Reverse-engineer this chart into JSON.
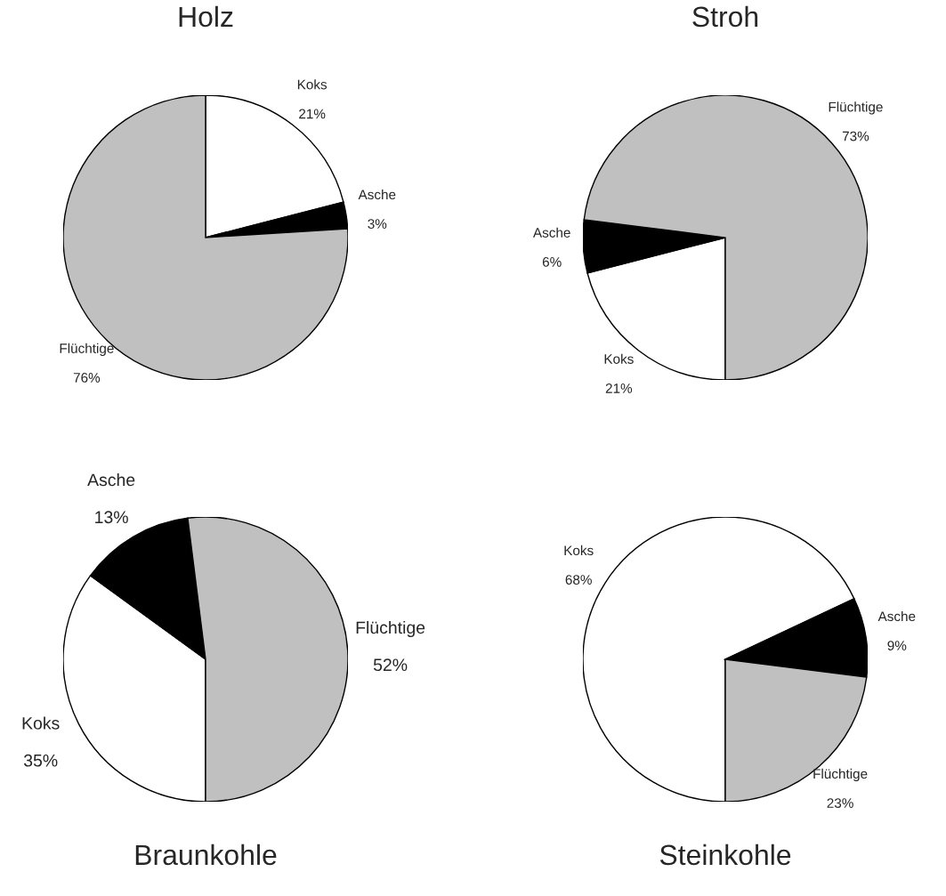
{
  "chart_data": [
    {
      "type": "pie",
      "title": "Holz",
      "categories": [
        "Koks",
        "Asche",
        "Flüchtige"
      ],
      "values": [
        21,
        3,
        76
      ],
      "value_labels": [
        "21%",
        "3%",
        "76%"
      ],
      "colors": [
        "#ffffff",
        "#000000",
        "#c0c0c0"
      ]
    },
    {
      "type": "pie",
      "title": "Stroh",
      "categories": [
        "Koks",
        "Asche",
        "Flüchtige"
      ],
      "values": [
        21,
        6,
        73
      ],
      "value_labels": [
        "21%",
        "6%",
        "73%"
      ],
      "colors": [
        "#ffffff",
        "#000000",
        "#c0c0c0"
      ]
    },
    {
      "type": "pie",
      "title": "Braunkohle",
      "categories": [
        "Koks",
        "Asche",
        "Flüchtige"
      ],
      "values": [
        35,
        13,
        52
      ],
      "value_labels": [
        "35%",
        "13%",
        "52%"
      ],
      "colors": [
        "#ffffff",
        "#000000",
        "#c0c0c0"
      ]
    },
    {
      "type": "pie",
      "title": "Steinkohle",
      "categories": [
        "Koks",
        "Asche",
        "Flüchtige"
      ],
      "values": [
        68,
        9,
        23
      ],
      "value_labels": [
        "68%",
        "9%",
        "23%"
      ],
      "colors": [
        "#ffffff",
        "#000000",
        "#c0c0c0"
      ]
    }
  ]
}
